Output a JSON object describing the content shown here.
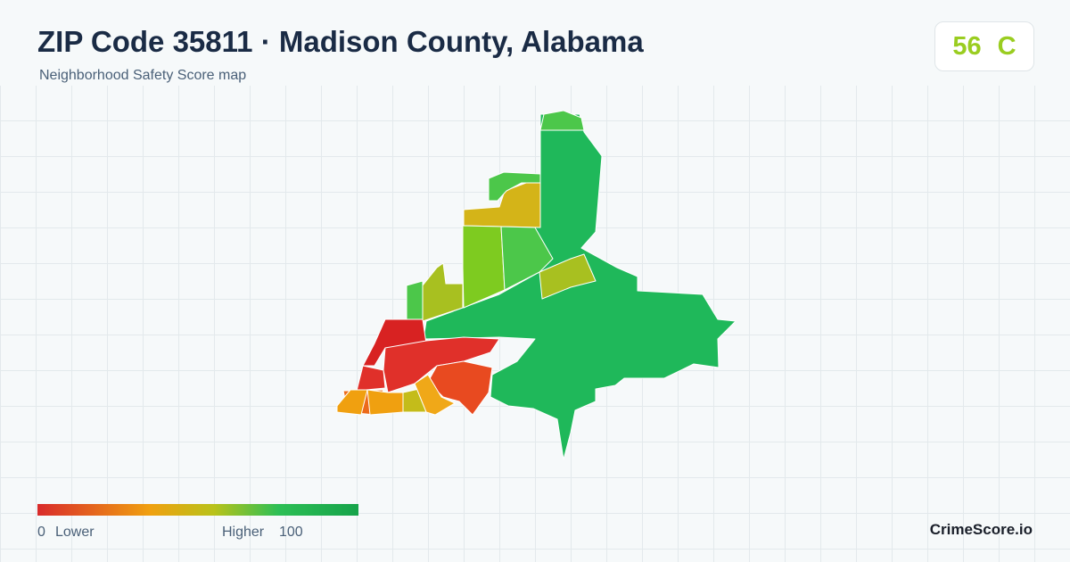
{
  "header": {
    "title": "ZIP Code 35811 · Madison County, Alabama",
    "subtitle": "Neighborhood Safety Score map"
  },
  "badge": {
    "score": 56,
    "grade": "C"
  },
  "legend": {
    "min": 0,
    "min_label": "Lower",
    "max_label": "Higher",
    "max": 100
  },
  "brand": "CrimeScore.io"
}
